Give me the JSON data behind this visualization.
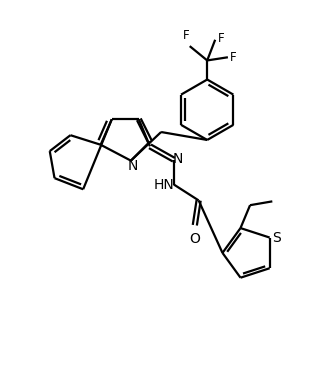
{
  "background_color": "#ffffff",
  "line_color": "#000000",
  "line_width": 1.6,
  "font_size": 8.5,
  "figsize": [
    3.19,
    3.69
  ],
  "dpi": 100,
  "xlim": [
    0,
    10
  ],
  "ylim": [
    0,
    11.6
  ]
}
